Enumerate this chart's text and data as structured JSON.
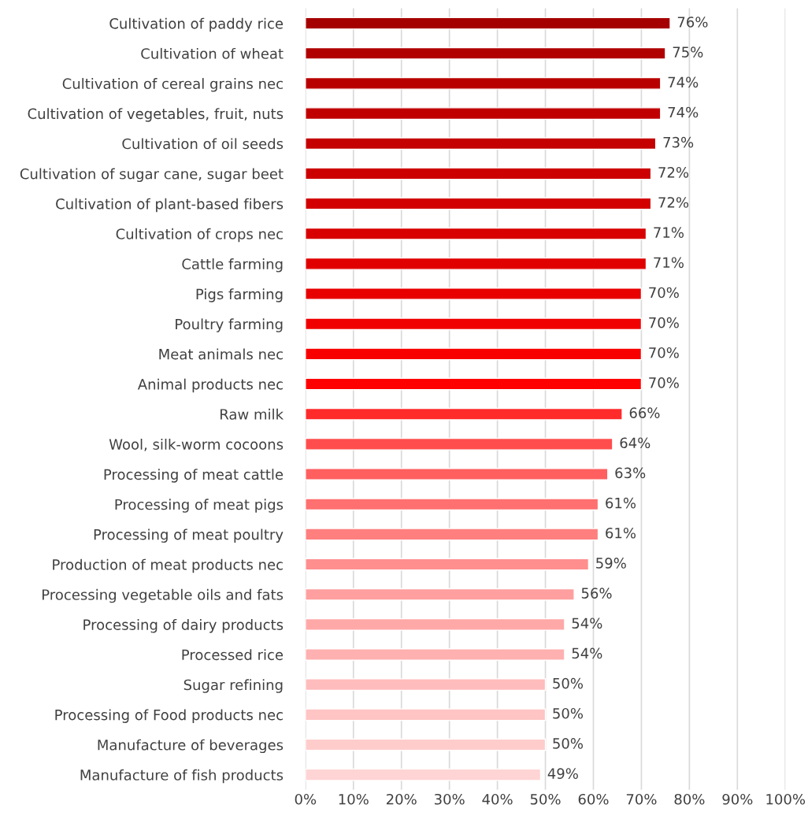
{
  "chart_data": {
    "type": "bar",
    "orientation": "horizontal",
    "categories": [
      "Cultivation of paddy rice",
      "Cultivation of wheat",
      "Cultivation of cereal grains nec",
      "Cultivation of vegetables, fruit, nuts",
      "Cultivation of oil seeds",
      "Cultivation of sugar cane, sugar beet",
      "Cultivation of plant-based fibers",
      "Cultivation of crops nec",
      "Cattle farming",
      "Pigs farming",
      "Poultry farming",
      "Meat animals nec",
      "Animal products nec",
      "Raw milk",
      "Wool, silk-worm cocoons",
      "Processing of meat cattle",
      "Processing of meat pigs",
      "Processing of meat poultry",
      "Production of meat products nec",
      "Processing vegetable oils and fats",
      "Processing of dairy products",
      "Processed rice",
      "Sugar refining",
      "Processing of Food products nec",
      "Manufacture of beverages",
      "Manufacture of fish products"
    ],
    "values": [
      76,
      75,
      74,
      74,
      73,
      72,
      72,
      71,
      71,
      70,
      70,
      70,
      70,
      66,
      64,
      63,
      61,
      61,
      59,
      56,
      54,
      54,
      50,
      50,
      50,
      49
    ],
    "value_labels": [
      "76%",
      "75%",
      "74%",
      "74%",
      "73%",
      "72%",
      "72%",
      "71%",
      "71%",
      "70%",
      "70%",
      "70%",
      "70%",
      "66%",
      "64%",
      "63%",
      "61%",
      "61%",
      "59%",
      "56%",
      "54%",
      "54%",
      "50%",
      "50%",
      "50%",
      "49%"
    ],
    "colors": [
      "#a50000",
      "#b00000",
      "#b80000",
      "#c00000",
      "#c40000",
      "#cc0000",
      "#d20000",
      "#d80000",
      "#e00000",
      "#e80000",
      "#f00000",
      "#f80000",
      "#ff0000",
      "#ff2a2a",
      "#ff4d4d",
      "#ff5f5f",
      "#ff7070",
      "#ff7f7f",
      "#ff8f8f",
      "#ff9f9f",
      "#ffa8a8",
      "#ffb0b0",
      "#ffbcbc",
      "#ffc4c4",
      "#ffcccc",
      "#ffd4d4"
    ],
    "xlim": [
      0,
      100
    ],
    "xticks": [
      {
        "value": 0,
        "label": "0%"
      },
      {
        "value": 10,
        "label": "10%"
      },
      {
        "value": 20,
        "label": "20%"
      },
      {
        "value": 30,
        "label": "30%"
      },
      {
        "value": 40,
        "label": "40%"
      },
      {
        "value": 50,
        "label": "50%"
      },
      {
        "value": 60,
        "label": "60%"
      },
      {
        "value": 70,
        "label": "70%"
      },
      {
        "value": 80,
        "label": "80%"
      },
      {
        "value": 90,
        "label": "90%"
      },
      {
        "value": 100,
        "label": "100%"
      }
    ],
    "grid": "x"
  }
}
